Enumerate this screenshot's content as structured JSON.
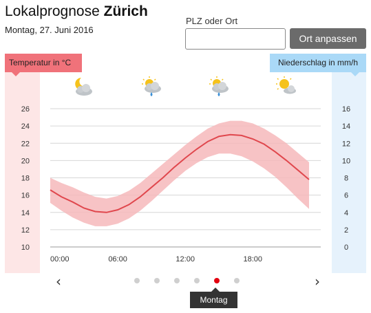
{
  "header": {
    "title_prefix": "Lokalprognose",
    "title_location": "Zürich",
    "date": "Montag, 27. Juni 2016"
  },
  "search": {
    "label": "PLZ oder Ort",
    "value": "",
    "placeholder": "",
    "button_label": "Ort anpassen"
  },
  "badges": {
    "temperature": "Temperatur in °C",
    "precipitation": "Niederschlag in mm/h"
  },
  "weather_icons": [
    {
      "name": "moon-cloud-icon",
      "hour": 3
    },
    {
      "name": "sun-cloud-rain-icon",
      "hour": 9
    },
    {
      "name": "sun-cloud-rain-icon",
      "hour": 15
    },
    {
      "name": "sun-cloud-icon",
      "hour": 21
    }
  ],
  "colors": {
    "temperature_line": "#e0474d",
    "temperature_band": "#f6b9bb",
    "temperature_badge": "#f0727a",
    "precipitation_badge": "#aad9f7",
    "active_dot": "#e3000f"
  },
  "chart_data": {
    "type": "line",
    "x_unit": "hour",
    "x_ticks": [
      "00:00",
      "06:00",
      "12:00",
      "18:00"
    ],
    "x_tick_values": [
      0,
      6,
      12,
      18
    ],
    "xlim": [
      0,
      23
    ],
    "y_left_ticks": [
      "26",
      "24",
      "22",
      "20",
      "18",
      "16",
      "14",
      "12",
      "10"
    ],
    "ylim_left": [
      10,
      26
    ],
    "y_right_ticks": [
      "16",
      "14",
      "12",
      "10",
      "8",
      "6",
      "4",
      "2",
      "0"
    ],
    "ylim_right": [
      0,
      16
    ],
    "grid": true,
    "series": [
      {
        "kind": "line",
        "x": [
          0,
          1,
          2,
          3,
          4,
          5,
          6,
          7,
          8,
          9,
          10,
          11,
          12,
          13,
          14,
          15,
          16,
          17,
          18,
          19,
          20,
          21,
          22,
          23
        ],
        "y": [
          16.6,
          15.8,
          15.2,
          14.5,
          14.1,
          14.0,
          14.3,
          14.9,
          15.8,
          16.9,
          18.0,
          19.2,
          20.3,
          21.3,
          22.2,
          22.8,
          23.0,
          22.9,
          22.5,
          21.9,
          21.0,
          20.0,
          18.9,
          17.8
        ]
      },
      {
        "kind": "band",
        "x": [
          0,
          1,
          2,
          3,
          4,
          5,
          6,
          7,
          8,
          9,
          10,
          11,
          12,
          13,
          14,
          15,
          16,
          17,
          18,
          19,
          20,
          21,
          22,
          23
        ],
        "low": [
          15.1,
          14.2,
          13.4,
          12.8,
          12.4,
          12.4,
          12.7,
          13.3,
          14.2,
          15.3,
          16.5,
          17.7,
          18.8,
          19.7,
          20.4,
          20.8,
          20.8,
          20.5,
          19.9,
          19.1,
          18.1,
          16.9,
          15.6,
          14.4
        ],
        "high": [
          18.0,
          17.4,
          16.9,
          16.3,
          15.8,
          15.6,
          15.9,
          16.5,
          17.4,
          18.5,
          19.6,
          20.7,
          21.8,
          22.8,
          23.7,
          24.3,
          24.6,
          24.6,
          24.3,
          23.7,
          22.9,
          22.0,
          20.9,
          19.8
        ]
      }
    ]
  },
  "pagination": {
    "prev_icon": "‹",
    "next_icon": "›",
    "dot_count": 6,
    "active_index": 4,
    "active_label": "Montag"
  }
}
